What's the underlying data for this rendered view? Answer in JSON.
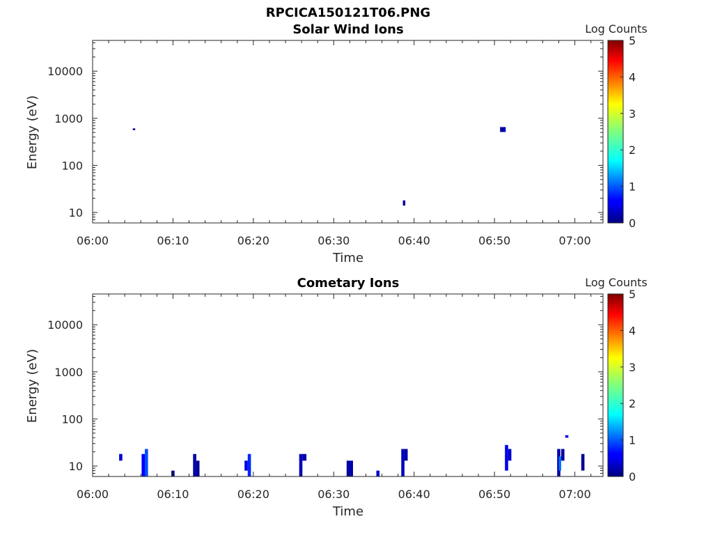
{
  "figure_title": "RPCICA150121T06.PNG",
  "chart_data": [
    {
      "type": "heatmap",
      "title": "Solar Wind Ions",
      "xlabel": "Time",
      "ylabel": "Energy (eV)",
      "x_ticks": [
        "06:00",
        "06:10",
        "06:20",
        "06:30",
        "06:40",
        "06:50",
        "07:00"
      ],
      "x_range_minutes": [
        0,
        63.5
      ],
      "y_scale": "log",
      "y_ticks": [
        "10",
        "100",
        "1000",
        "10000"
      ],
      "y_range": [
        6,
        45000
      ],
      "colorbar": {
        "label": "Log Counts",
        "ticks": [
          "0",
          "1",
          "2",
          "3",
          "4",
          "5"
        ],
        "range": [
          0,
          5
        ],
        "colormap": "jet"
      },
      "cells": [
        {
          "t0": 5.0,
          "t1": 5.3,
          "e0": 560,
          "e1": 610,
          "value": 0.1
        },
        {
          "t0": 38.6,
          "t1": 38.9,
          "e0": 14,
          "e1": 18,
          "value": 0.15
        },
        {
          "t0": 50.7,
          "t1": 51.4,
          "e0": 510,
          "e1": 650,
          "value": 0.2
        }
      ]
    },
    {
      "type": "heatmap",
      "title": "Cometary Ions",
      "xlabel": "Time",
      "ylabel": "Energy (eV)",
      "x_ticks": [
        "06:00",
        "06:10",
        "06:20",
        "06:30",
        "06:40",
        "06:50",
        "07:00"
      ],
      "x_range_minutes": [
        0,
        63.5
      ],
      "y_scale": "log",
      "y_ticks": [
        "10",
        "100",
        "1000",
        "10000"
      ],
      "y_range": [
        6,
        45000
      ],
      "colorbar": {
        "label": "Log Counts",
        "ticks": [
          "0",
          "1",
          "2",
          "3",
          "4",
          "5"
        ],
        "range": [
          0,
          5
        ],
        "colormap": "jet"
      },
      "cells": [
        {
          "t0": 3.3,
          "t1": 3.7,
          "e0": 13,
          "e1": 18,
          "value": 0.4
        },
        {
          "t0": 6.1,
          "t1": 6.5,
          "e0": 6,
          "e1": 18,
          "value": 0.6
        },
        {
          "t0": 6.5,
          "t1": 6.9,
          "e0": 6,
          "e1": 23,
          "value": 1.0
        },
        {
          "t0": 9.8,
          "t1": 10.2,
          "e0": 6,
          "e1": 8,
          "value": 0.1
        },
        {
          "t0": 12.5,
          "t1": 12.9,
          "e0": 6,
          "e1": 18,
          "value": 0.2
        },
        {
          "t0": 12.9,
          "t1": 13.3,
          "e0": 6,
          "e1": 13,
          "value": 0.1
        },
        {
          "t0": 18.9,
          "t1": 19.3,
          "e0": 8,
          "e1": 13,
          "value": 0.5
        },
        {
          "t0": 19.3,
          "t1": 19.7,
          "e0": 6,
          "e1": 18,
          "value": 0.8
        },
        {
          "t0": 25.7,
          "t1": 26.1,
          "e0": 6,
          "e1": 18,
          "value": 0.3
        },
        {
          "t0": 26.1,
          "t1": 26.6,
          "e0": 13,
          "e1": 18,
          "value": 0.2
        },
        {
          "t0": 31.6,
          "t1": 32.4,
          "e0": 6,
          "e1": 13,
          "value": 0.2
        },
        {
          "t0": 35.3,
          "t1": 35.7,
          "e0": 6,
          "e1": 8,
          "value": 0.4
        },
        {
          "t0": 38.4,
          "t1": 38.8,
          "e0": 6,
          "e1": 23,
          "value": 0.3
        },
        {
          "t0": 38.8,
          "t1": 39.2,
          "e0": 13,
          "e1": 23,
          "value": 0.2
        },
        {
          "t0": 51.3,
          "t1": 51.7,
          "e0": 8,
          "e1": 28,
          "value": 0.5
        },
        {
          "t0": 51.7,
          "t1": 52.1,
          "e0": 13,
          "e1": 23,
          "value": 0.4
        },
        {
          "t0": 57.8,
          "t1": 58.2,
          "e0": 6,
          "e1": 23,
          "value": 0.2
        },
        {
          "t0": 58.0,
          "t1": 58.3,
          "e0": 8,
          "e1": 16,
          "value": 1.2
        },
        {
          "t0": 58.3,
          "t1": 58.7,
          "e0": 13,
          "e1": 23,
          "value": 0.15
        },
        {
          "t0": 58.8,
          "t1": 59.2,
          "e0": 40,
          "e1": 45,
          "value": 0.5
        },
        {
          "t0": 60.8,
          "t1": 61.2,
          "e0": 8,
          "e1": 18,
          "value": 0.1
        }
      ]
    }
  ]
}
